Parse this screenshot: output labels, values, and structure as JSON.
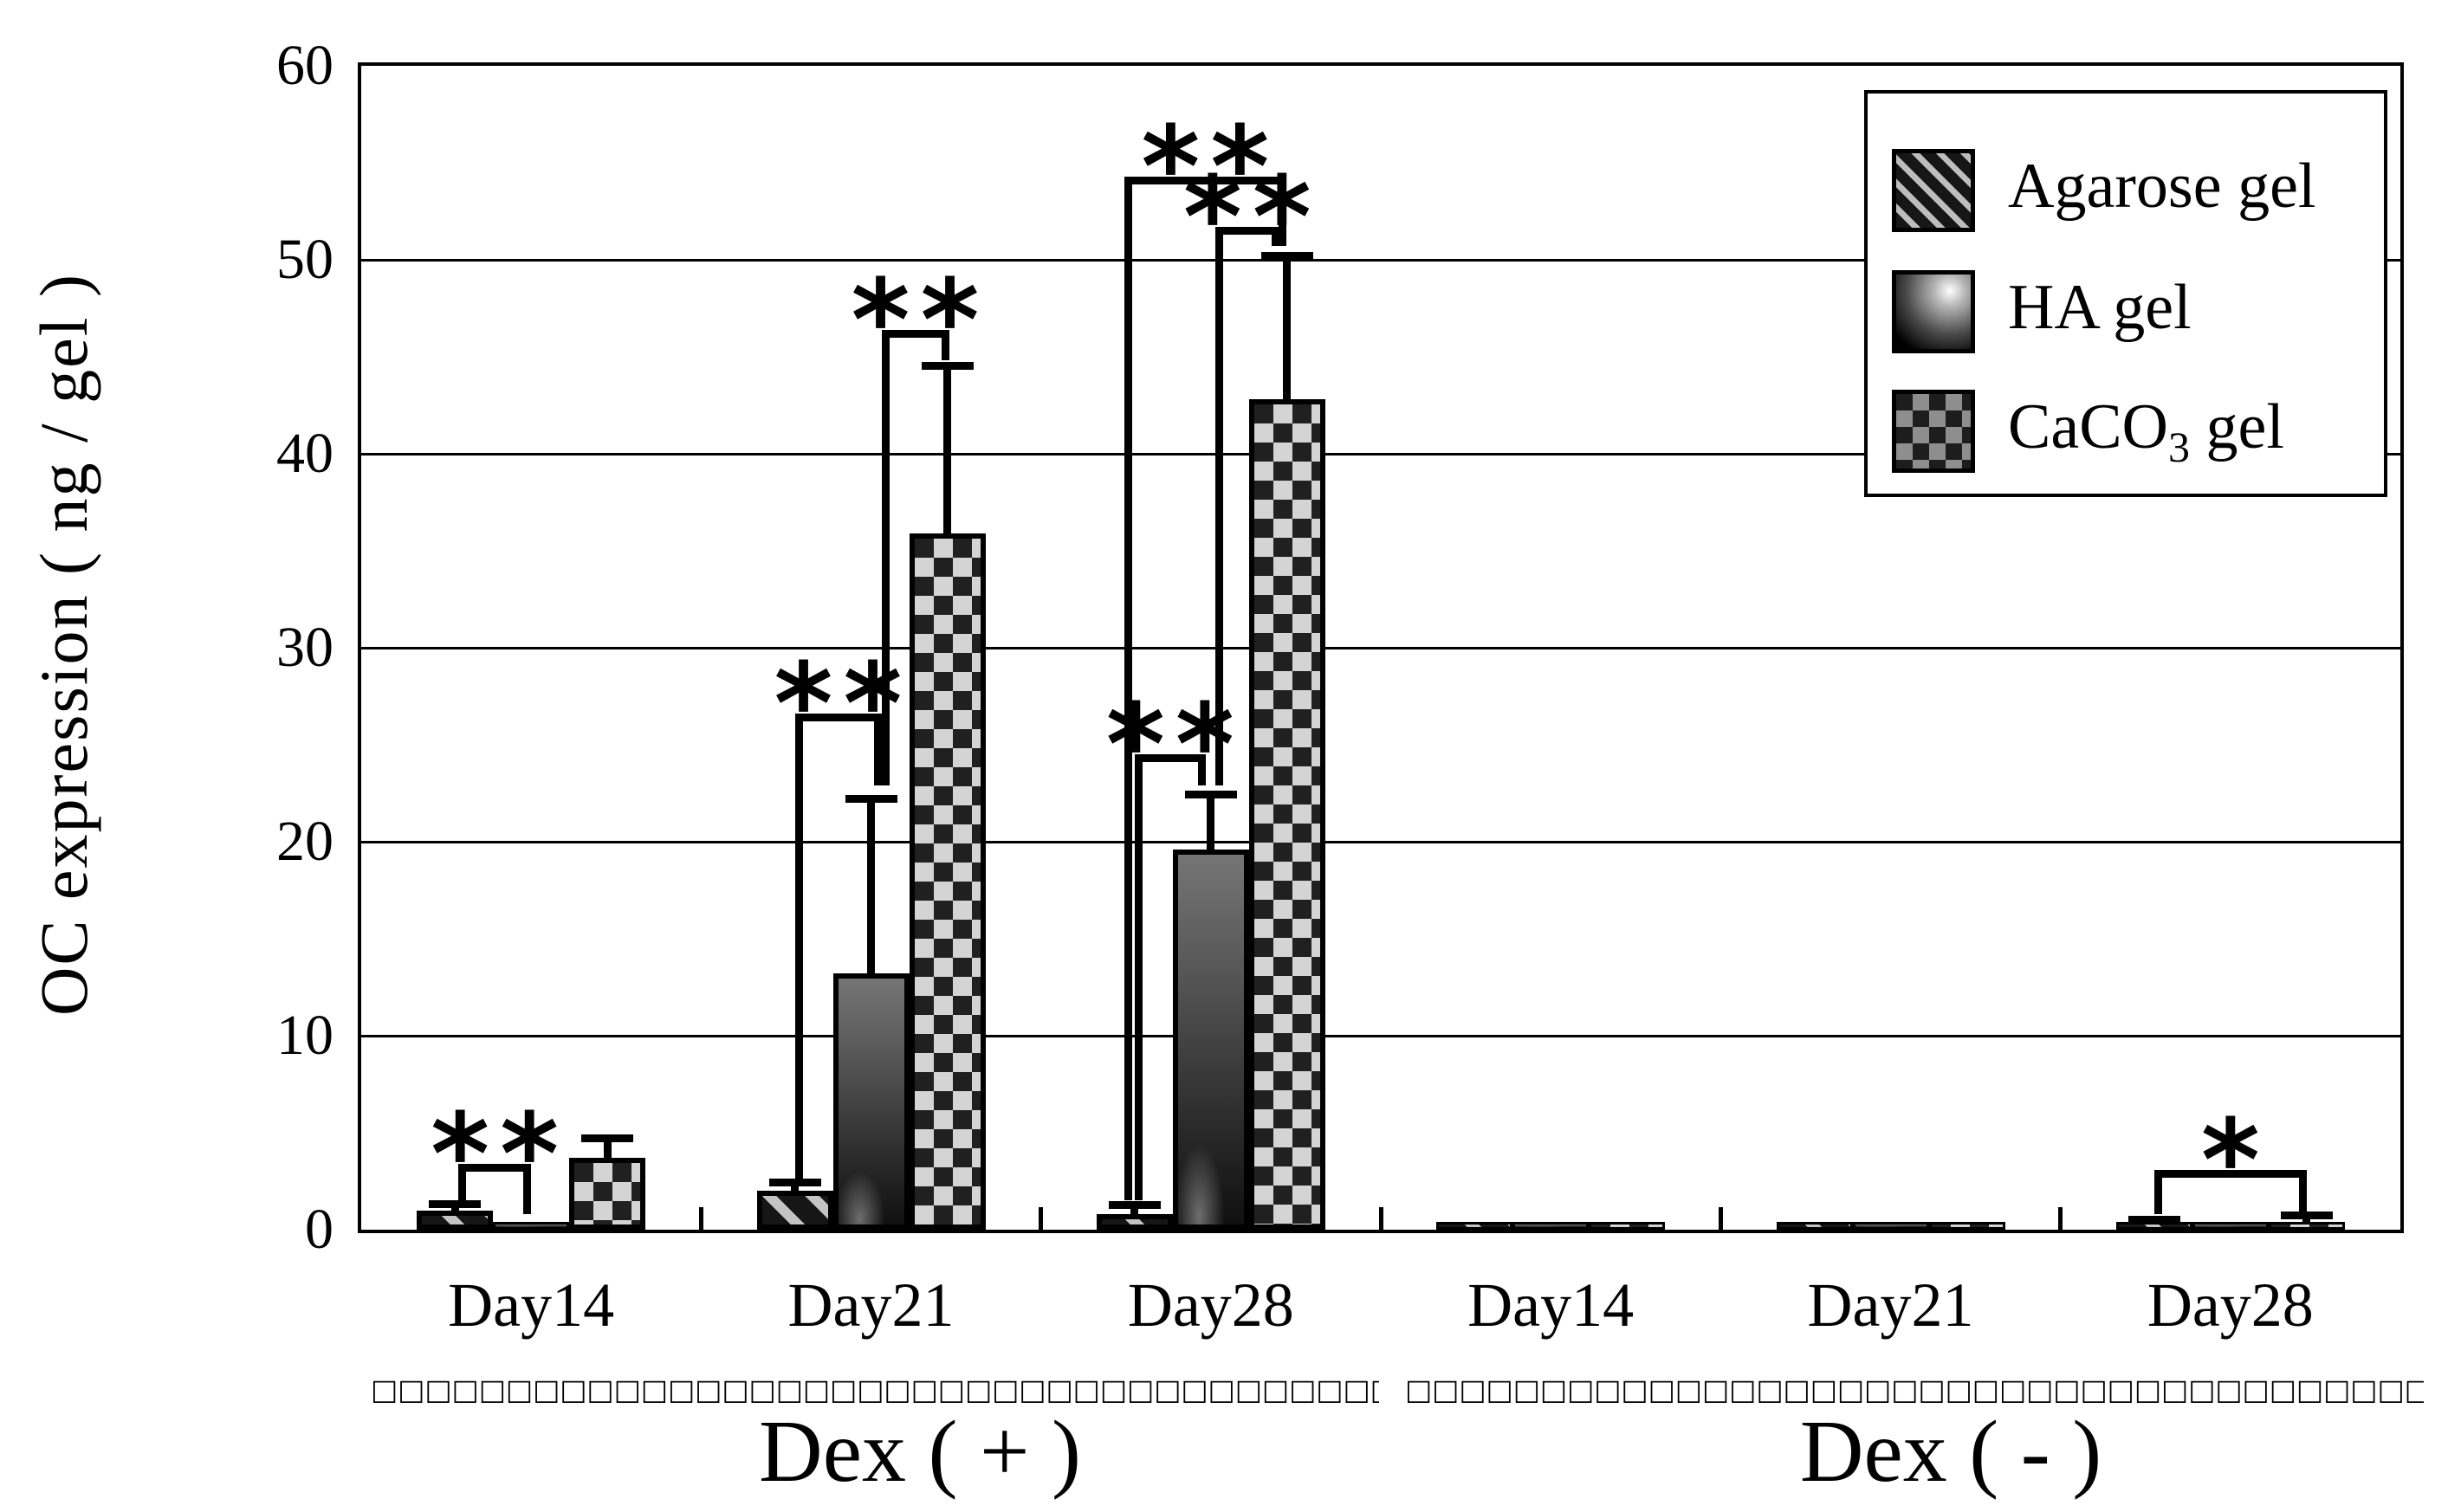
{
  "chart_data": {
    "type": "bar",
    "title": "",
    "ylabel": "OC expression ( ng / gel )",
    "ylim": [
      0,
      60
    ],
    "yticks": [
      0,
      10,
      20,
      30,
      40,
      50,
      60
    ],
    "grid": "horizontal gridlines every 10 units, full plot frame",
    "legend_position": "top-right inside frame",
    "series_names": [
      "Agarose gel",
      "HA gel",
      "CaCO3 gel"
    ],
    "series_keys": [
      "agarose-gel",
      "ha-gel",
      "caco3-gel"
    ],
    "series_patterns": [
      "black-diagonal-hatch",
      "dark-gradient",
      "checkerboard"
    ],
    "sections": [
      {
        "label": "Dex ( + )",
        "categories": [
          "Day14",
          "Day21",
          "Day28"
        ]
      },
      {
        "label": "Dex ( - )",
        "categories": [
          "Day14",
          "Day21",
          "Day28"
        ]
      }
    ],
    "day_labels": [
      "Day14",
      "Day21",
      "Day28",
      "Day14",
      "Day21",
      "Day28"
    ],
    "groups": [
      {
        "section": "Dex ( + )",
        "day": "Day14",
        "values": [
          1.0,
          0.4,
          3.7
        ],
        "errors": [
          0.3,
          0,
          1.0
        ]
      },
      {
        "section": "Dex ( + )",
        "day": "Day21",
        "values": [
          2.0,
          13.2,
          35.9
        ],
        "errors": [
          0.4,
          9.0,
          8.6
        ]
      },
      {
        "section": "Dex ( + )",
        "day": "Day28",
        "values": [
          0.8,
          19.6,
          42.8
        ],
        "errors": [
          0.45,
          2.8,
          7.4
        ]
      },
      {
        "section": "Dex ( - )",
        "day": "Day14",
        "values": [
          0.2,
          0.2,
          0.2
        ],
        "errors": [
          0,
          0,
          0
        ]
      },
      {
        "section": "Dex ( - )",
        "day": "Day21",
        "values": [
          0.2,
          0.3,
          0.2
        ],
        "errors": [
          0,
          0,
          0
        ]
      },
      {
        "section": "Dex ( - )",
        "day": "Day28",
        "values": [
          0.25,
          0.3,
          0.4
        ],
        "errors": [
          0.25,
          0,
          0.3
        ]
      }
    ],
    "significance": [
      {
        "group": 0,
        "s1": 0,
        "s2": 1,
        "label": "**",
        "y": 3.0,
        "leg1_to": 1.5,
        "leg2_to": 0.8,
        "dx1": 4,
        "dx2": 0
      },
      {
        "group": 1,
        "s1": 0,
        "s2": 1,
        "label": "**",
        "y": 26.2,
        "leg1_to": 2.6,
        "leg2_to": 22.9,
        "dx1": 0,
        "dx2": 12
      },
      {
        "group": 1,
        "s1": 1,
        "s2": 2,
        "label": "**",
        "y": 46.0,
        "leg1_to": 22.9,
        "leg2_to": 44.8,
        "dx1": 12,
        "dx2": 2
      },
      {
        "group": 2,
        "s1": 0,
        "s2": 1,
        "label": "**",
        "y": 24.1,
        "leg1_to": 1.5,
        "leg2_to": 22.9,
        "dx1": 0,
        "dx2": -6
      },
      {
        "group": 2,
        "s1": 1,
        "s2": 2,
        "label": "**",
        "y": 51.3,
        "leg1_to": 22.9,
        "leg2_to": 50.7,
        "dx1": 5,
        "dx2": -9
      },
      {
        "group": 2,
        "s1": 0,
        "s2": 2,
        "label": "**",
        "y": 53.9,
        "leg1_to": 1.5,
        "leg2_to": 50.7,
        "dx1": -12,
        "dx2": -1
      },
      {
        "group": 5,
        "s1": 0,
        "s2": 2,
        "label": "*",
        "y": 2.7,
        "leg1_to": 0.8,
        "leg2_to": 0.8,
        "dx1": 0,
        "dx2": 0
      }
    ]
  },
  "axis": {
    "y_tick_labels": [
      "60",
      "50",
      "40",
      "30",
      "20",
      "10",
      "0"
    ]
  },
  "legend": {
    "items": [
      {
        "pre": "Agarose gel",
        "sub": "",
        "post": ""
      },
      {
        "pre": "HA gel",
        "sub": "",
        "post": ""
      },
      {
        "pre": "CaCO",
        "sub": "3",
        "post": " gel"
      }
    ]
  },
  "dex_sections": [
    {
      "label": "Dex ( + )",
      "squares": "□□□□□□□□□□□□□□□□□□□□□□□□□□□□□□□□□□□□□□□□□□□□"
    },
    {
      "label": "Dex ( - )",
      "squares": "□□□□□□□□□□□□□□□□□□□□□□□□□□□□□□□□□□□□□□□□□□□□"
    }
  ]
}
